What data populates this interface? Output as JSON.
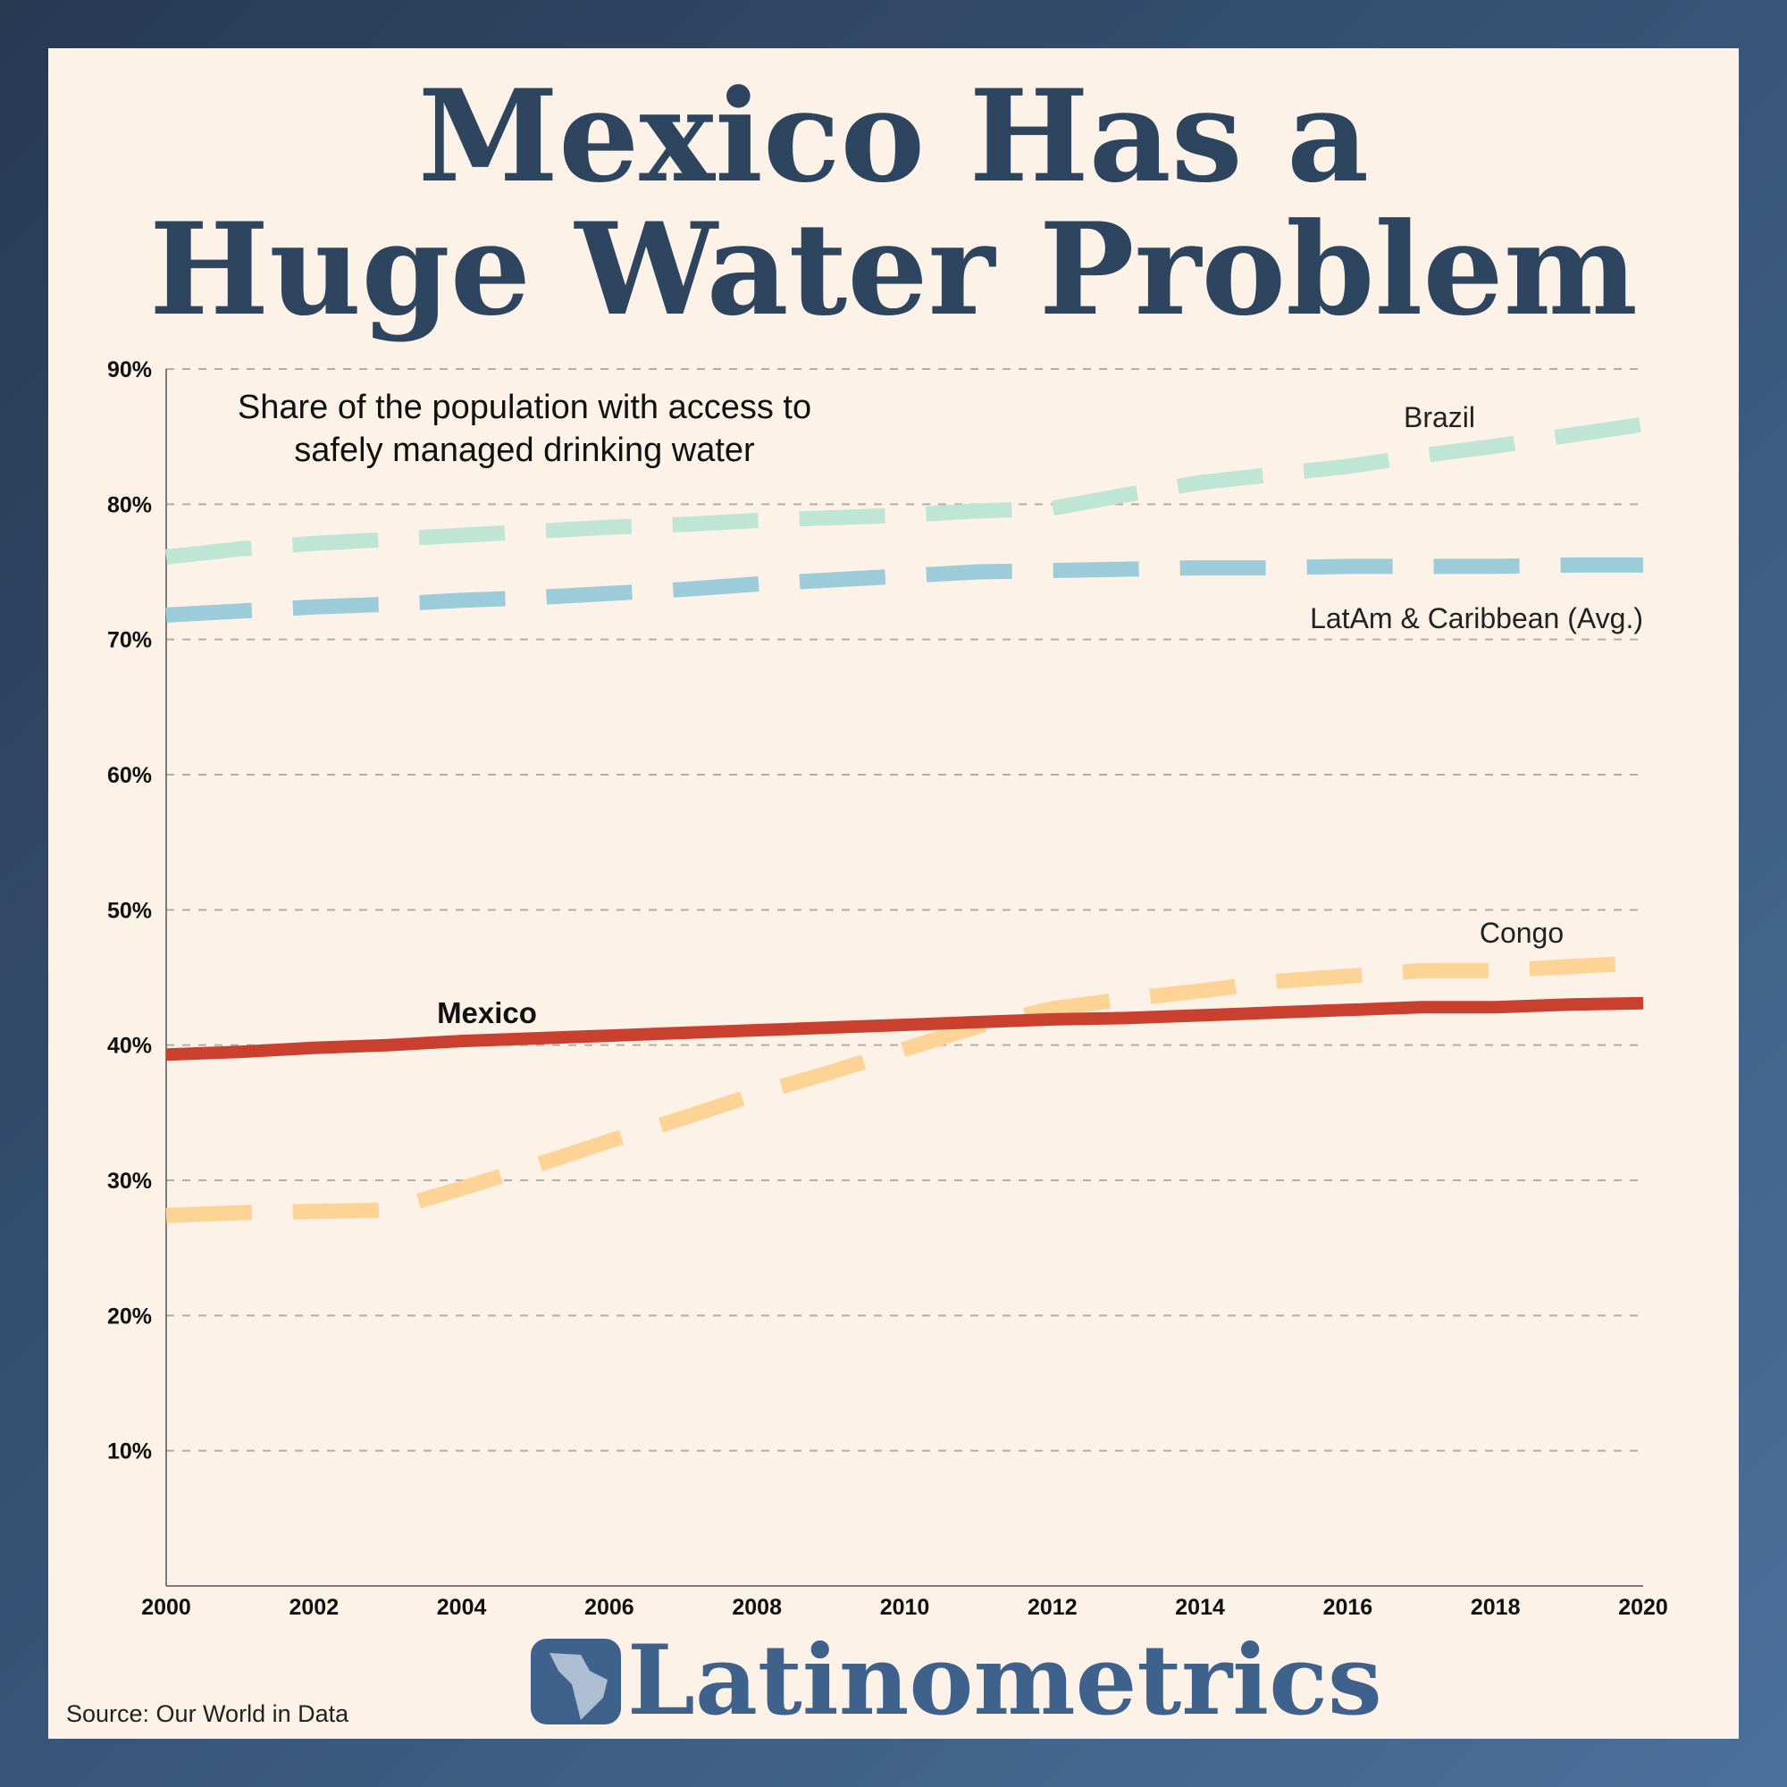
{
  "title_lines": [
    "Mexico Has a",
    "Huge Water Problem"
  ],
  "subtitle_lines": [
    "Share of the population with access to",
    "safely managed drinking water"
  ],
  "source": "Source: Our World in Data",
  "brand": "Latinometrics",
  "colors": {
    "background_dark": "#2a3d55",
    "background_light": "#4b709c",
    "panel": "#fdf2e7",
    "title": "#2e4560",
    "brand": "#3f628d",
    "mexico": "#c9402f",
    "congo": "#fdd396",
    "brazil": "#bfe6d4",
    "latam": "#9ccbd9"
  },
  "chart_data": {
    "type": "line",
    "x": [
      2000,
      2001,
      2002,
      2003,
      2004,
      2005,
      2006,
      2007,
      2008,
      2009,
      2010,
      2011,
      2012,
      2013,
      2014,
      2015,
      2016,
      2017,
      2018,
      2019,
      2020
    ],
    "xlim": [
      2000,
      2020
    ],
    "ylim": [
      0,
      90
    ],
    "x_ticks": [
      "2000",
      "2002",
      "2004",
      "2006",
      "2008",
      "2010",
      "2012",
      "2014",
      "2016",
      "2018",
      "2020"
    ],
    "y_ticks": [
      "10%",
      "20%",
      "30%",
      "40%",
      "50%",
      "60%",
      "70%",
      "80%",
      "90%"
    ],
    "grid": true,
    "series": [
      {
        "name": "Brazil",
        "style": "dashed",
        "color": "#bfe6d4",
        "values": [
          76.1,
          76.7,
          77.1,
          77.4,
          77.7,
          78.0,
          78.3,
          78.5,
          78.8,
          79.0,
          79.2,
          79.5,
          79.7,
          80.7,
          81.6,
          82.2,
          82.8,
          83.6,
          84.3,
          85.1,
          85.9
        ]
      },
      {
        "name": "LatAm & Caribbean (Avg.)",
        "style": "dashed",
        "color": "#9ccbd9",
        "values": [
          71.8,
          72.1,
          72.4,
          72.6,
          72.9,
          73.1,
          73.4,
          73.7,
          74.1,
          74.4,
          74.7,
          75.0,
          75.1,
          75.2,
          75.3,
          75.3,
          75.4,
          75.4,
          75.4,
          75.5,
          75.5
        ]
      },
      {
        "name": "Mexico",
        "style": "solid",
        "color": "#c9402f",
        "values": [
          39.3,
          39.5,
          39.8,
          40.0,
          40.3,
          40.5,
          40.7,
          40.9,
          41.1,
          41.3,
          41.5,
          41.7,
          41.9,
          42.0,
          42.2,
          42.4,
          42.6,
          42.8,
          42.8,
          43.0,
          43.1
        ]
      },
      {
        "name": "Congo",
        "style": "dashed",
        "color": "#fdd396",
        "values": [
          27.4,
          27.6,
          27.7,
          27.8,
          29.4,
          31.1,
          32.9,
          34.6,
          36.4,
          38.0,
          39.7,
          41.4,
          42.7,
          43.4,
          44.0,
          44.7,
          45.1,
          45.5,
          45.5,
          45.8,
          46.1
        ]
      }
    ]
  }
}
